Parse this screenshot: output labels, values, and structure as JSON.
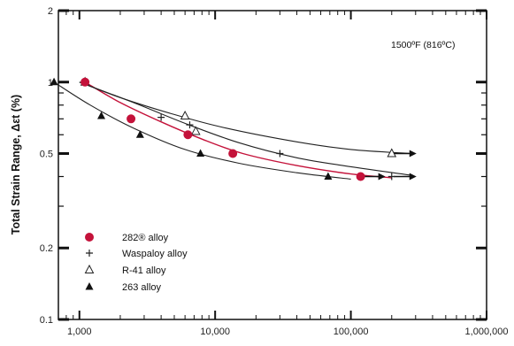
{
  "chart_data": {
    "type": "scatter",
    "title": "",
    "xlabel": "",
    "ylabel": "Total Strain Range, Δεt (%)",
    "xscale": "log",
    "yscale": "log",
    "xlim": [
      700,
      1000000
    ],
    "ylim": [
      0.1,
      2
    ],
    "x_ticks": [
      {
        "value": 1000,
        "label": "1,000"
      },
      {
        "value": 10000,
        "label": "10,000"
      },
      {
        "value": 100000,
        "label": "100,000"
      },
      {
        "value": 1000000,
        "label": "1,000,000"
      }
    ],
    "y_ticks": [
      {
        "value": 0.1,
        "label": "0.1"
      },
      {
        "value": 0.2,
        "label": "0.2"
      },
      {
        "value": 0.5,
        "label": "0.5"
      },
      {
        "value": 1,
        "label": "1"
      },
      {
        "value": 2,
        "label": "2"
      }
    ],
    "annotation": "1500ºF (816ºC)",
    "legend_position": "bottom-left",
    "series": [
      {
        "name": "282® alloy",
        "marker": "circle",
        "color": "#c4123a",
        "points": [
          [
            1100,
            1.0
          ],
          [
            2400,
            0.7
          ],
          [
            6300,
            0.6
          ],
          [
            13500,
            0.5
          ],
          [
            118000,
            0.4
          ]
        ],
        "fit": [
          [
            1100,
            1.0
          ],
          [
            2000,
            0.82
          ],
          [
            4000,
            0.68
          ],
          [
            8000,
            0.575
          ],
          [
            16000,
            0.5
          ],
          [
            40000,
            0.445
          ],
          [
            100000,
            0.41
          ],
          [
            200000,
            0.395
          ]
        ]
      },
      {
        "name": "Waspaloy alloy",
        "marker": "plus",
        "color": "#222222",
        "points": [
          [
            1100,
            1.0
          ],
          [
            4000,
            0.71
          ],
          [
            6500,
            0.66
          ],
          [
            30000,
            0.5
          ],
          [
            200000,
            0.4
          ]
        ]
      },
      {
        "name": "R-41 alloy",
        "marker": "triangle-open",
        "color": "#222222",
        "points": [
          [
            1100,
            1.0
          ],
          [
            6000,
            0.72
          ],
          [
            7200,
            0.62
          ],
          [
            200000,
            0.5
          ]
        ],
        "fit": [
          [
            1000,
            1.0
          ],
          [
            2000,
            0.86
          ],
          [
            5000,
            0.73
          ],
          [
            12000,
            0.64
          ],
          [
            40000,
            0.56
          ],
          [
            100000,
            0.52
          ],
          [
            280000,
            0.5
          ]
        ]
      },
      {
        "name": "263 alloy",
        "marker": "triangle-filled",
        "color": "#111111",
        "points": [
          [
            650,
            1.0
          ],
          [
            1450,
            0.72
          ],
          [
            2800,
            0.6
          ],
          [
            7800,
            0.5
          ],
          [
            68000,
            0.4
          ]
        ],
        "fit": [
          [
            650,
            1.0
          ],
          [
            1200,
            0.8
          ],
          [
            2500,
            0.64
          ],
          [
            6000,
            0.52
          ],
          [
            15000,
            0.455
          ],
          [
            40000,
            0.415
          ],
          [
            100000,
            0.39
          ]
        ]
      },
      {
        "name": "",
        "marker": "none",
        "color": "#222222",
        "points": [],
        "fit": [
          [
            1000,
            1.0
          ],
          [
            2500,
            0.82
          ],
          [
            6000,
            0.67
          ],
          [
            15000,
            0.555
          ],
          [
            40000,
            0.48
          ],
          [
            100000,
            0.44
          ],
          [
            280000,
            0.405
          ]
        ]
      }
    ],
    "runouts": [
      {
        "x": 200000,
        "y": 0.5
      },
      {
        "x": 118000,
        "y": 0.4
      },
      {
        "x": 200000,
        "y": 0.4
      }
    ]
  }
}
